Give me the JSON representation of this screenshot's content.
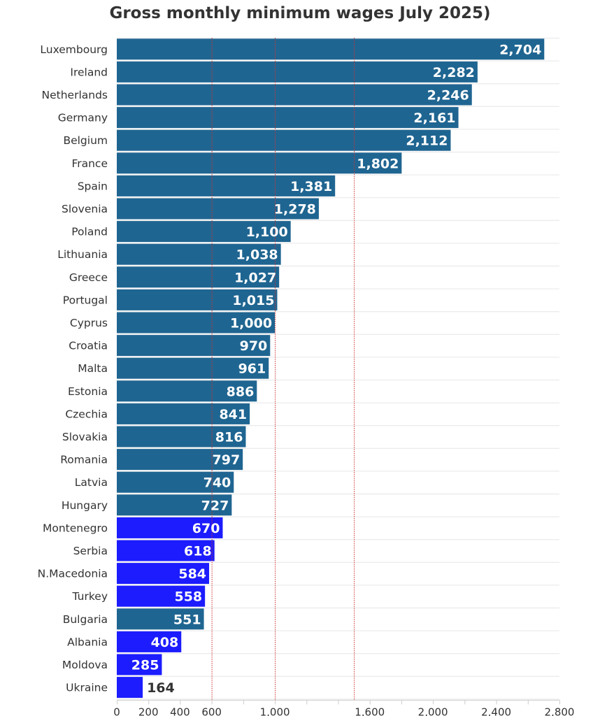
{
  "chart_data": {
    "type": "bar",
    "orientation": "horizontal",
    "title": "Gross monthly minimum wages July 2025)",
    "categories": [
      "Luxembourg",
      "Ireland",
      "Netherlands",
      "Germany",
      "Belgium",
      "France",
      "Spain",
      "Slovenia",
      "Poland",
      "Lithuania",
      "Greece",
      "Portugal",
      "Cyprus",
      "Croatia",
      "Malta",
      "Estonia",
      "Czechia",
      "Slovakia",
      "Romania",
      "Latvia",
      "Hungary",
      "Montenegro",
      "Serbia",
      "N.Macedonia",
      "Turkey",
      "Bulgaria",
      "Albania",
      "Moldova",
      "Ukraine"
    ],
    "values": [
      2704,
      2282,
      2246,
      2161,
      2112,
      1802,
      1381,
      1278,
      1100,
      1038,
      1027,
      1015,
      1000,
      970,
      961,
      886,
      841,
      816,
      797,
      740,
      727,
      670,
      618,
      584,
      558,
      551,
      408,
      285,
      164
    ],
    "value_labels": [
      "2,704",
      "2,282",
      "2,246",
      "2,161",
      "2,112",
      "1,802",
      "1,381",
      "1,278",
      "1,100",
      "1,038",
      "1,027",
      "1,015",
      "1,000",
      "970",
      "961",
      "886",
      "841",
      "816",
      "797",
      "740",
      "727",
      "670",
      "618",
      "584",
      "558",
      "551",
      "408",
      "285",
      "164"
    ],
    "bar_colors": [
      "#1f6591",
      "#1f6591",
      "#1f6591",
      "#1f6591",
      "#1f6591",
      "#1f6591",
      "#1f6591",
      "#1f6591",
      "#1f6591",
      "#1f6591",
      "#1f6591",
      "#1f6591",
      "#1f6591",
      "#1f6591",
      "#1f6591",
      "#1f6591",
      "#1f6591",
      "#1f6591",
      "#1f6591",
      "#1f6591",
      "#1f6591",
      "#1c1cff",
      "#1c1cff",
      "#1c1cff",
      "#1c1cff",
      "#1f6591",
      "#1c1cff",
      "#1c1cff",
      "#1c1cff"
    ],
    "xlim": [
      0,
      2800
    ],
    "x_ticks": [
      0,
      200,
      400,
      600,
      1000,
      1600,
      2000,
      2400,
      2800
    ],
    "x_tick_labels": [
      "0",
      "200",
      "400",
      "600",
      "1,000",
      "1,600",
      "2,000",
      "2,400",
      "2,800"
    ],
    "reference_lines": [
      600,
      1000,
      1500
    ],
    "grid": true,
    "colors": {
      "eu_bar": "#1f6591",
      "non_eu_bar": "#1c1cff",
      "reference_line": "#cc3333",
      "grid": "#e6e6e6"
    }
  }
}
